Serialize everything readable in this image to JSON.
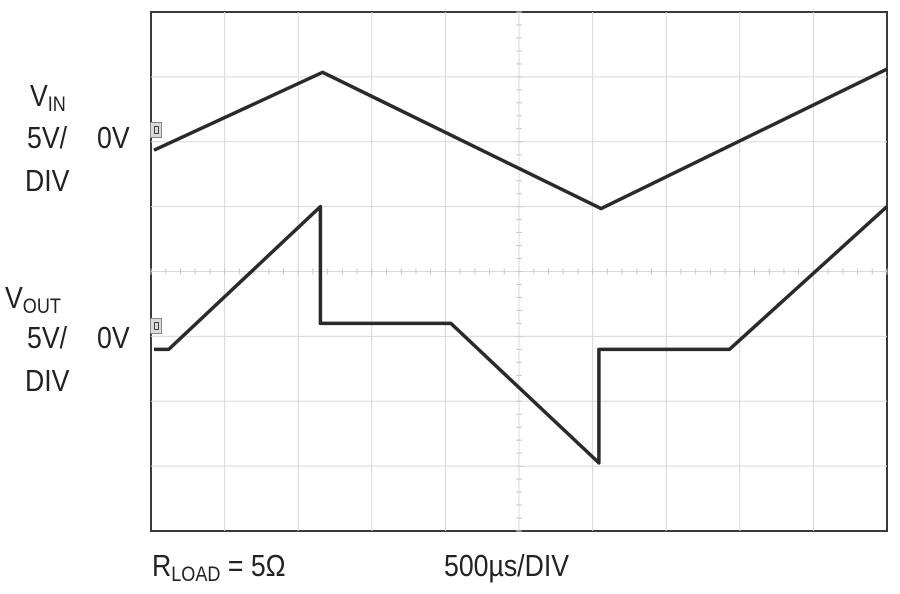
{
  "chart_data": {
    "type": "line",
    "title": "",
    "x_divisions": 10,
    "y_divisions": 8,
    "grid": true,
    "timebase_label": "500µs/DIV",
    "load_label": {
      "main": "R",
      "sub": "LOAD",
      "rest": " = 5Ω"
    },
    "series": [
      {
        "name": "VIN",
        "label_main": "V",
        "label_sub": "IN",
        "scale_line": "5V/",
        "scale_line2": "DIV",
        "zero_label": "0V",
        "color": "#2a2a2a",
        "x_div": [
          0.0,
          2.3,
          6.1,
          10.0
        ],
        "y_div": [
          0.0,
          1.2,
          -0.9,
          1.25
        ]
      },
      {
        "name": "VOUT",
        "label_main": "V",
        "label_sub": "OUT",
        "scale_line": "5V/",
        "scale_line2": "DIV",
        "zero_label": "0V",
        "color": "#2a2a2a",
        "x_div": [
          0.0,
          0.2,
          2.27,
          2.27,
          4.05,
          6.07,
          6.07,
          7.85,
          10.0
        ],
        "y_div": [
          0.0,
          0.0,
          2.2,
          0.4,
          0.4,
          -1.75,
          0.0,
          0.0,
          2.2
        ]
      }
    ]
  }
}
